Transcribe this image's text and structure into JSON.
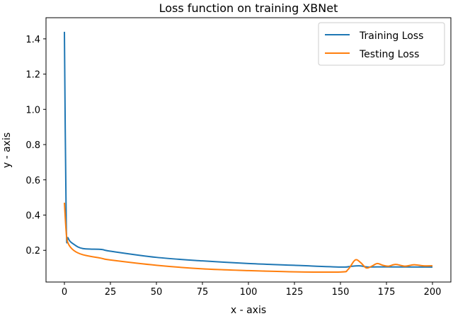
{
  "chart_data": {
    "type": "line",
    "title": "Loss function on training XBNet",
    "xlabel": "x - axis",
    "ylabel": "y - axis",
    "xlim": [
      -10,
      210
    ],
    "ylim": [
      0.02,
      1.52
    ],
    "xticks": [
      0,
      25,
      50,
      75,
      100,
      125,
      150,
      175,
      200
    ],
    "yticks": [
      0.2,
      0.4,
      0.6,
      0.8,
      1.0,
      1.2,
      1.4
    ],
    "ytick_labels": [
      "0.2",
      "0.4",
      "0.6",
      "0.8",
      "1.0",
      "1.2",
      "1.4"
    ],
    "grid": false,
    "legend_position": "top-right",
    "series": [
      {
        "name": "Training Loss",
        "color": "#1f77b4",
        "x": [
          0,
          1,
          2,
          5,
          10,
          20,
          25,
          50,
          75,
          100,
          125,
          150,
          155,
          160,
          165,
          170,
          200
        ],
        "y": [
          1.44,
          0.35,
          0.27,
          0.235,
          0.21,
          0.205,
          0.195,
          0.16,
          0.14,
          0.125,
          0.115,
          0.105,
          0.108,
          0.112,
          0.105,
          0.106,
          0.105
        ]
      },
      {
        "name": "Testing Loss",
        "color": "#ff7f0e",
        "x": [
          0,
          1,
          2,
          5,
          10,
          20,
          25,
          50,
          75,
          100,
          125,
          150,
          154,
          158,
          161,
          164,
          167,
          170,
          173,
          176,
          180,
          185,
          190,
          195,
          200
        ],
        "y": [
          0.47,
          0.3,
          0.24,
          0.2,
          0.175,
          0.155,
          0.145,
          0.115,
          0.095,
          0.085,
          0.078,
          0.077,
          0.09,
          0.145,
          0.13,
          0.1,
          0.11,
          0.125,
          0.115,
          0.11,
          0.12,
          0.11,
          0.118,
          0.112,
          0.112
        ]
      }
    ]
  }
}
